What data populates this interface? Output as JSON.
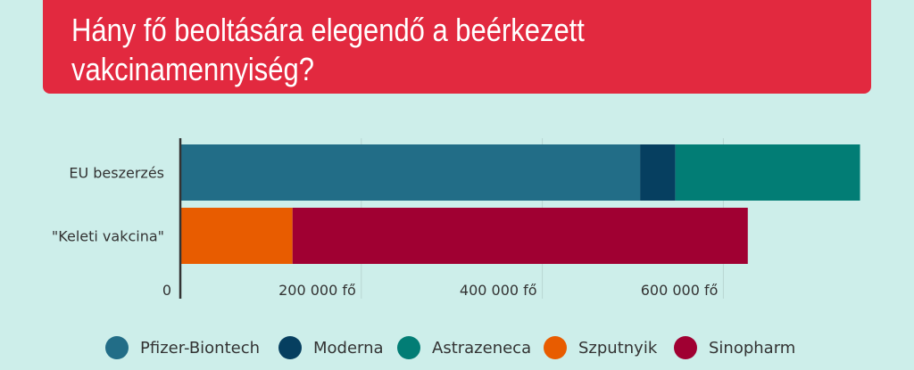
{
  "title": "Hány fő beoltására elegendő a beérkezett vakcinamennyiség?",
  "chart_data": {
    "type": "bar",
    "orientation": "horizontal",
    "stacked": true,
    "categories": [
      "EU beszerzés",
      "\"Keleti vakcina\""
    ],
    "series": [
      {
        "name": "Pfizer-Biontech",
        "color": "#226d87",
        "values": [
          508000,
          0
        ]
      },
      {
        "name": "Moderna",
        "color": "#063f60",
        "values": [
          39000,
          0
        ]
      },
      {
        "name": "Astrazeneca",
        "color": "#027d75",
        "values": [
          204000,
          0
        ]
      },
      {
        "name": "Szputnyik",
        "color": "#e85c00",
        "values": [
          0,
          124000
        ]
      },
      {
        "name": "Sinopharm",
        "color": "#a00032",
        "values": [
          0,
          503000
        ]
      }
    ],
    "xlim": [
      0,
      750000
    ],
    "xticks": [
      {
        "value": 0,
        "label": "0"
      },
      {
        "value": 200000,
        "label": "200 000 fő"
      },
      {
        "value": 400000,
        "label": "400 000 fő"
      },
      {
        "value": 600000,
        "label": "600 000 fő"
      }
    ],
    "grid": true,
    "legend_position": "bottom"
  }
}
